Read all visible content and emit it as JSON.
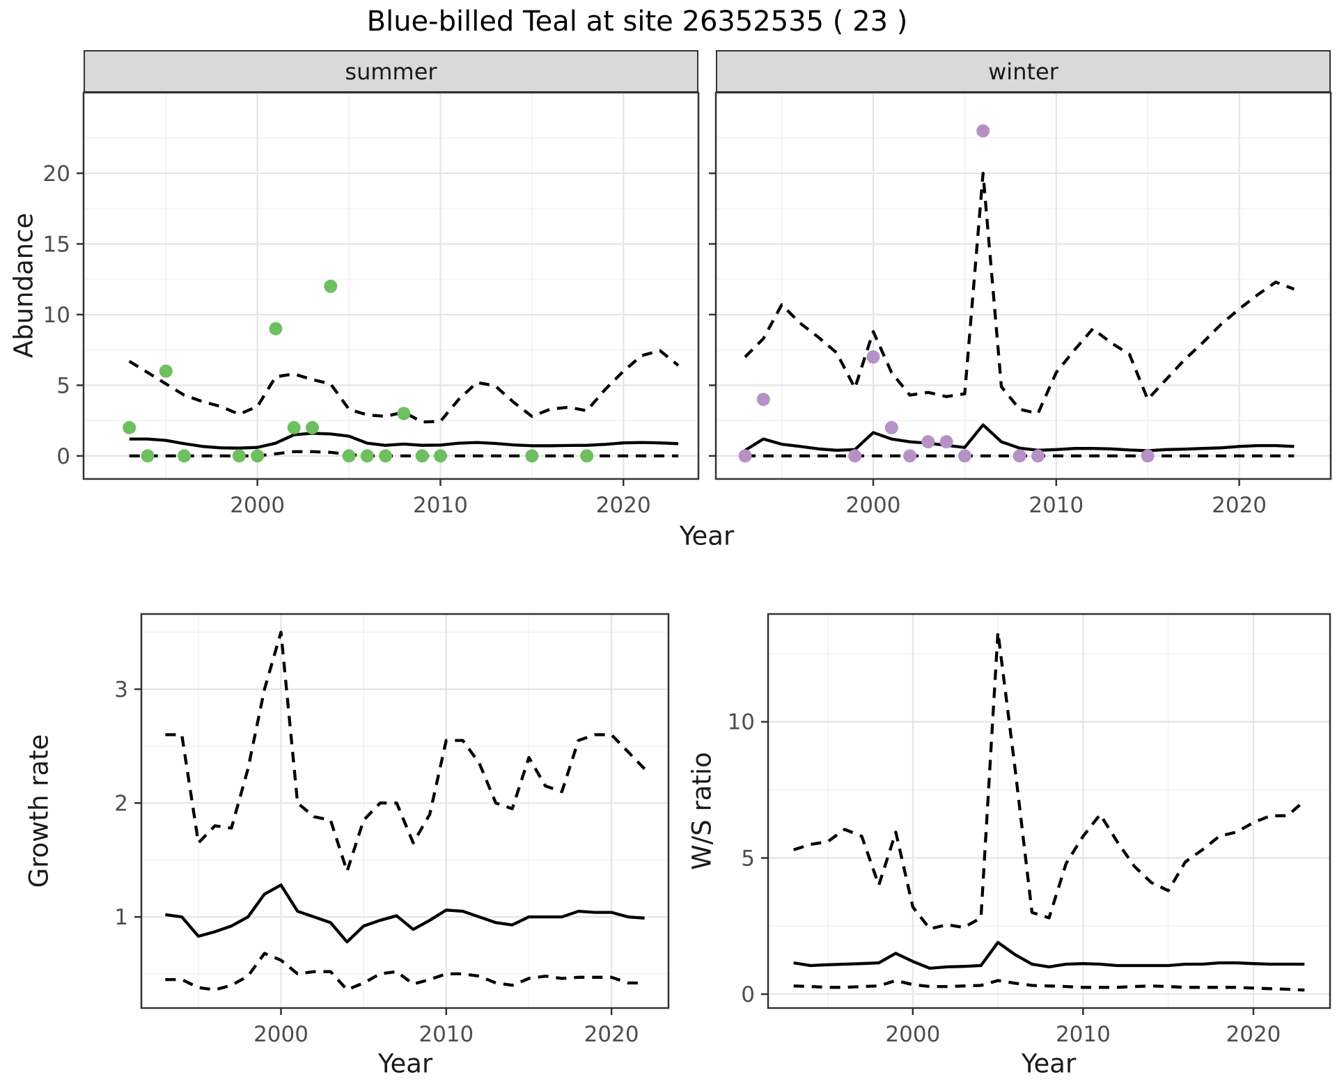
{
  "title": "Blue-billed Teal at site 26352535 ( 23 )",
  "facets": [
    {
      "label": "summer"
    },
    {
      "label": "winter"
    }
  ],
  "axis": {
    "year_label": "Year",
    "abundance_label": "Abundance",
    "growth_label": "Growth rate",
    "ws_label": "W/S ratio"
  },
  "colors": {
    "summer_point": "#6dbf5f",
    "winter_point": "#b691c6",
    "line": "#000000",
    "grid_major": "#e5e5e5",
    "grid_minor": "#f2f2f2",
    "panel_border": "#333333",
    "strip_bg": "#d9d9d9",
    "tick_label": "#4d4d4d",
    "background": "#ffffff"
  },
  "chart_data": [
    {
      "id": "abundance-summer",
      "type": "line",
      "facet": "summer",
      "title": "",
      "xlabel": "Year",
      "ylabel": "Abundance",
      "x_range": [
        1990.5,
        2024.1
      ],
      "y_range": [
        -1.63,
        25.71
      ],
      "x_ticks": [
        2000,
        2010,
        2020
      ],
      "x_minor": [
        1995,
        2005,
        2015
      ],
      "y_ticks": [
        0,
        5,
        10,
        15,
        20
      ],
      "y_minor": [
        2.5,
        7.5,
        12.5,
        17.5,
        22.5
      ],
      "show_y_labels": true,
      "years": [
        1993,
        1994,
        1995,
        1996,
        1997,
        1998,
        1999,
        2000,
        2001,
        2002,
        2003,
        2004,
        2005,
        2006,
        2007,
        2008,
        2009,
        2010,
        2011,
        2012,
        2013,
        2014,
        2015,
        2016,
        2017,
        2018,
        2019,
        2020,
        2021,
        2022,
        2023
      ],
      "series": [
        {
          "name": "mean",
          "style": "solid",
          "values": [
            1.2,
            1.2,
            1.1,
            0.87,
            0.67,
            0.57,
            0.55,
            0.6,
            0.9,
            1.5,
            1.6,
            1.55,
            1.4,
            0.9,
            0.75,
            0.84,
            0.75,
            0.77,
            0.9,
            0.95,
            0.88,
            0.78,
            0.72,
            0.72,
            0.74,
            0.75,
            0.82,
            0.92,
            0.95,
            0.92,
            0.87
          ]
        },
        {
          "name": "upper-ci",
          "style": "dashed",
          "values": [
            6.7,
            5.9,
            5.1,
            4.3,
            3.85,
            3.5,
            2.95,
            3.5,
            5.6,
            5.8,
            5.4,
            5.1,
            3.3,
            2.9,
            2.8,
            3.1,
            2.4,
            2.45,
            4.0,
            5.2,
            4.95,
            3.8,
            2.8,
            3.3,
            3.45,
            3.2,
            4.7,
            6.0,
            7.1,
            7.45,
            6.4
          ]
        },
        {
          "name": "lower-ci",
          "style": "dashed",
          "values": [
            0,
            0,
            0,
            0,
            0,
            0,
            0,
            0,
            0.15,
            0.3,
            0.3,
            0.25,
            0.1,
            0,
            0,
            0,
            0,
            0,
            0,
            0,
            0,
            0,
            0,
            0,
            0,
            0,
            0,
            0,
            0,
            0,
            0
          ]
        }
      ],
      "points": {
        "color_key": "summer_point",
        "years": [
          1993,
          1994,
          1995,
          1996,
          1999,
          2000,
          2001,
          2002,
          2003,
          2004,
          2005,
          2006,
          2007,
          2008,
          2009,
          2010,
          2015,
          2018
        ],
        "values": [
          2,
          0,
          6,
          0,
          0,
          0,
          9,
          2,
          2,
          12,
          0,
          0,
          0,
          3,
          0,
          0,
          0,
          0
        ]
      }
    },
    {
      "id": "abundance-winter",
      "type": "line",
      "facet": "winter",
      "title": "",
      "xlabel": "Year",
      "ylabel": "Abundance",
      "x_range": [
        1991.4,
        2025.0
      ],
      "y_range": [
        -1.63,
        25.71
      ],
      "x_ticks": [
        2000,
        2010,
        2020
      ],
      "x_minor": [
        1995,
        2005,
        2015
      ],
      "y_ticks": [
        0,
        5,
        10,
        15,
        20
      ],
      "y_minor": [
        2.5,
        7.5,
        12.5,
        17.5,
        22.5
      ],
      "show_y_labels": false,
      "years": [
        1993,
        1994,
        1995,
        1996,
        1997,
        1998,
        1999,
        2000,
        2001,
        2002,
        2003,
        2004,
        2005,
        2006,
        2007,
        2008,
        2009,
        2010,
        2011,
        2012,
        2013,
        2014,
        2015,
        2016,
        2017,
        2018,
        2019,
        2020,
        2021,
        2022,
        2023
      ],
      "series": [
        {
          "name": "mean",
          "style": "solid",
          "values": [
            0.4,
            1.2,
            0.83,
            0.67,
            0.5,
            0.4,
            0.45,
            1.65,
            1.2,
            1.0,
            0.9,
            0.75,
            0.6,
            2.2,
            1.0,
            0.55,
            0.4,
            0.45,
            0.53,
            0.53,
            0.5,
            0.42,
            0.37,
            0.45,
            0.48,
            0.53,
            0.57,
            0.67,
            0.73,
            0.73,
            0.67
          ]
        },
        {
          "name": "upper-ci",
          "style": "dashed",
          "values": [
            7.0,
            8.3,
            10.7,
            9.4,
            8.4,
            7.3,
            4.8,
            8.8,
            5.9,
            4.3,
            4.5,
            4.2,
            4.4,
            20.0,
            4.9,
            3.3,
            3.0,
            5.9,
            7.5,
            9.0,
            8.0,
            7.2,
            4.0,
            5.4,
            6.8,
            8.0,
            9.3,
            10.4,
            11.4,
            12.3,
            11.8
          ]
        },
        {
          "name": "lower-ci",
          "style": "dashed",
          "values": [
            0,
            0,
            0,
            0,
            0,
            0,
            0,
            0,
            0,
            0,
            0,
            0,
            0,
            0,
            0,
            0,
            0,
            0,
            0,
            0,
            0,
            0,
            0,
            0,
            0,
            0,
            0,
            0,
            0,
            0,
            0
          ]
        }
      ],
      "points": {
        "color_key": "winter_point",
        "years": [
          1993,
          1994,
          1999,
          2000,
          2001,
          2002,
          2003,
          2004,
          2005,
          2006,
          2008,
          2009,
          2015
        ],
        "values": [
          0,
          4,
          0,
          7,
          2,
          0,
          1,
          1,
          0,
          23,
          0,
          0,
          0
        ]
      }
    },
    {
      "id": "growth-rate",
      "type": "line",
      "facet": "",
      "title": "",
      "xlabel": "Year",
      "ylabel": "Growth rate",
      "x_range": [
        1991.55,
        2023.45
      ],
      "y_range": [
        0.2,
        3.66
      ],
      "x_ticks": [
        2000,
        2010,
        2020
      ],
      "x_minor": [
        1995,
        2005,
        2015
      ],
      "y_ticks": [
        1,
        2,
        3
      ],
      "y_minor": [
        0.5,
        1.5,
        2.5,
        3.5
      ],
      "show_y_labels": true,
      "years": [
        1993,
        1994,
        1995,
        1996,
        1997,
        1998,
        1999,
        2000,
        2001,
        2002,
        2003,
        2004,
        2005,
        2006,
        2007,
        2008,
        2009,
        2010,
        2011,
        2012,
        2013,
        2014,
        2015,
        2016,
        2017,
        2018,
        2019,
        2020,
        2021,
        2022
      ],
      "series": [
        {
          "name": "mean",
          "style": "solid",
          "values": [
            1.02,
            1.0,
            0.83,
            0.87,
            0.92,
            1.0,
            1.2,
            1.28,
            1.05,
            1.0,
            0.95,
            0.78,
            0.92,
            0.97,
            1.01,
            0.89,
            0.97,
            1.06,
            1.05,
            1.0,
            0.95,
            0.93,
            1.0,
            1.0,
            1.0,
            1.05,
            1.04,
            1.04,
            1.0,
            0.99
          ]
        },
        {
          "name": "upper-ci",
          "style": "dashed",
          "values": [
            2.6,
            2.6,
            1.65,
            1.8,
            1.78,
            2.3,
            3.0,
            3.5,
            2.0,
            1.88,
            1.85,
            1.4,
            1.85,
            2.0,
            2.0,
            1.65,
            1.9,
            2.55,
            2.55,
            2.35,
            2.0,
            1.95,
            2.4,
            2.15,
            2.1,
            2.55,
            2.6,
            2.6,
            2.45,
            2.3
          ]
        },
        {
          "name": "lower-ci",
          "style": "dashed",
          "values": [
            0.45,
            0.45,
            0.38,
            0.36,
            0.4,
            0.48,
            0.68,
            0.62,
            0.5,
            0.52,
            0.52,
            0.36,
            0.42,
            0.5,
            0.52,
            0.41,
            0.45,
            0.5,
            0.5,
            0.48,
            0.42,
            0.4,
            0.46,
            0.48,
            0.46,
            0.47,
            0.47,
            0.47,
            0.42,
            0.42
          ]
        }
      ],
      "points": null
    },
    {
      "id": "ws-ratio",
      "type": "line",
      "facet": "",
      "title": "",
      "xlabel": "Year",
      "ylabel": "W/S ratio",
      "x_range": [
        1991.5,
        2024.5
      ],
      "y_range": [
        -0.51,
        13.96
      ],
      "x_ticks": [
        2000,
        2010,
        2020
      ],
      "x_minor": [
        1995,
        2005,
        2015
      ],
      "y_ticks": [
        0,
        5,
        10
      ],
      "y_minor": [
        2.5,
        7.5,
        12.5
      ],
      "show_y_labels": true,
      "years": [
        1993,
        1994,
        1995,
        1996,
        1997,
        1998,
        1999,
        2000,
        2001,
        2002,
        2003,
        2004,
        2005,
        2006,
        2007,
        2008,
        2009,
        2010,
        2011,
        2012,
        2013,
        2014,
        2015,
        2016,
        2017,
        2018,
        2019,
        2020,
        2021,
        2022,
        2023
      ],
      "series": [
        {
          "name": "mean",
          "style": "solid",
          "values": [
            1.15,
            1.05,
            1.08,
            1.1,
            1.12,
            1.15,
            1.5,
            1.2,
            0.95,
            1.0,
            1.02,
            1.05,
            1.9,
            1.45,
            1.1,
            1.0,
            1.1,
            1.12,
            1.1,
            1.05,
            1.05,
            1.05,
            1.05,
            1.1,
            1.1,
            1.15,
            1.15,
            1.12,
            1.1,
            1.1,
            1.1
          ]
        },
        {
          "name": "upper-ci",
          "style": "dashed",
          "values": [
            5.3,
            5.5,
            5.6,
            6.05,
            5.8,
            4.0,
            5.95,
            3.2,
            2.4,
            2.55,
            2.45,
            2.8,
            13.3,
            8.3,
            3.0,
            2.8,
            4.8,
            5.8,
            6.6,
            5.6,
            4.7,
            4.1,
            3.8,
            4.85,
            5.3,
            5.8,
            5.95,
            6.3,
            6.55,
            6.55,
            7.1
          ]
        },
        {
          "name": "lower-ci",
          "style": "dashed",
          "values": [
            0.3,
            0.28,
            0.25,
            0.25,
            0.28,
            0.3,
            0.5,
            0.35,
            0.28,
            0.28,
            0.3,
            0.32,
            0.5,
            0.4,
            0.32,
            0.3,
            0.28,
            0.25,
            0.25,
            0.25,
            0.28,
            0.3,
            0.28,
            0.25,
            0.25,
            0.25,
            0.25,
            0.22,
            0.2,
            0.18,
            0.15
          ]
        }
      ],
      "points": null
    }
  ]
}
